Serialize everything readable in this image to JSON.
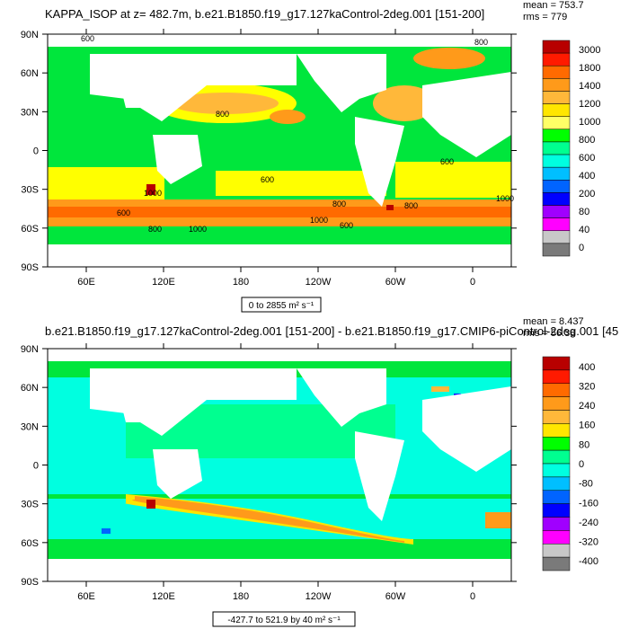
{
  "chart_data": [
    {
      "type": "heatmap",
      "title": "KAPPA_ISOP at z= 482.7m, b.e21.B1850.f19_g17.127kaControl-2deg.001 [151-200]",
      "stats": {
        "mean": "mean = 753.7",
        "rms": "rms = 779"
      },
      "x_ticks": [
        "60E",
        "120E",
        "180",
        "120W",
        "60W",
        "0"
      ],
      "y_ticks": [
        "90N",
        "60N",
        "30N",
        "0",
        "30S",
        "60S",
        "90S"
      ],
      "colorbar_labels": [
        "3000",
        "1800",
        "1400",
        "1200",
        "1000",
        "800",
        "600",
        "400",
        "200",
        "80",
        "40",
        "0"
      ],
      "colorbar_colors": [
        "#b80000",
        "#ff1a00",
        "#ff6a00",
        "#ff9a1a",
        "#ffb83a",
        "#ffe600",
        "#ffff66",
        "#00ff00",
        "#00ff90",
        "#00ffe0",
        "#00bfff",
        "#0064ff",
        "#0000ff",
        "#a000ff",
        "#ff00ff",
        "#c8c8c8",
        "#7a7a7a"
      ],
      "contour_labels": [
        "600",
        "800",
        "1000"
      ],
      "range_label": "0 to 2855 m² s⁻¹",
      "xlim": [
        30,
        390
      ],
      "ylim": [
        -90,
        90
      ]
    },
    {
      "type": "heatmap",
      "title": "b.e21.B1850.f19_g17.127kaControl-2deg.001 [151-200] - b.e21.B1850.f19_g17.CMIP6-piControl-2deg.001 [45",
      "stats": {
        "mean": "mean = 8.437",
        "rms": "rms = 56.38"
      },
      "x_ticks": [
        "60E",
        "120E",
        "180",
        "120W",
        "60W",
        "0"
      ],
      "y_ticks": [
        "90N",
        "60N",
        "30N",
        "0",
        "30S",
        "60S",
        "90S"
      ],
      "colorbar_labels": [
        "400",
        "320",
        "240",
        "160",
        "80",
        "0",
        "-80",
        "-160",
        "-240",
        "-320",
        "-400"
      ],
      "colorbar_colors": [
        "#b80000",
        "#ff1a00",
        "#ff6a00",
        "#ff9a1a",
        "#ffb83a",
        "#ffe600",
        "#00ff00",
        "#00ff90",
        "#00ffe0",
        "#00bfff",
        "#0064ff",
        "#0000ff",
        "#a000ff",
        "#ff00ff",
        "#c8c8c8",
        "#7a7a7a"
      ],
      "range_label": "-427.7 to 521.9 by 40 m² s⁻¹",
      "xlim": [
        30,
        390
      ],
      "ylim": [
        -90,
        90
      ]
    }
  ]
}
